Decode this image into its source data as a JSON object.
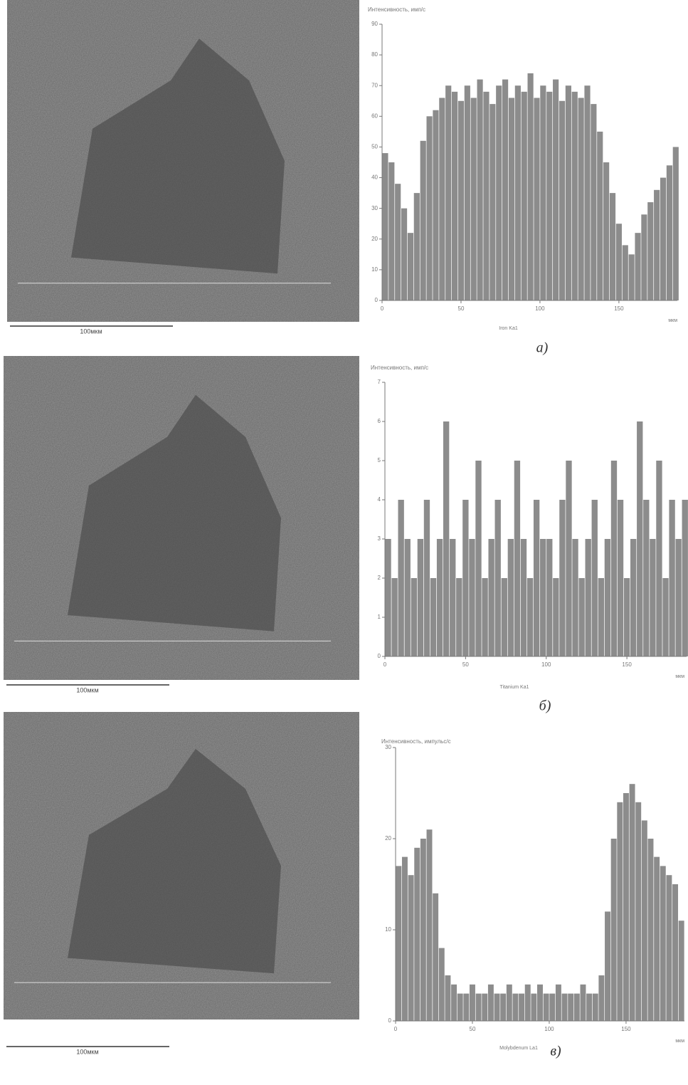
{
  "chart_data": [
    {
      "type": "bar",
      "y_label": "Интенсивность, имп/с",
      "x_label": "Iron Ka1",
      "x_unit": "мкм",
      "color": "#8c8c8c",
      "x": [
        2,
        6,
        10,
        14,
        18,
        22,
        26,
        30,
        34,
        38,
        42,
        46,
        50,
        54,
        58,
        62,
        66,
        70,
        74,
        78,
        82,
        86,
        90,
        94,
        98,
        102,
        106,
        110,
        114,
        118,
        122,
        126,
        130,
        134,
        138,
        142,
        146,
        150,
        154,
        158,
        162,
        166,
        170,
        174,
        178,
        182,
        186
      ],
      "values": [
        48,
        45,
        38,
        30,
        22,
        35,
        52,
        60,
        62,
        66,
        70,
        68,
        65,
        70,
        66,
        72,
        68,
        64,
        70,
        72,
        66,
        70,
        68,
        74,
        66,
        70,
        68,
        72,
        65,
        70,
        68,
        66,
        70,
        64,
        55,
        45,
        35,
        25,
        18,
        15,
        22,
        28,
        32,
        36,
        40,
        44,
        50
      ],
      "xlim": [
        0,
        187
      ],
      "ylim": [
        0,
        90
      ],
      "xticks": [
        0,
        50,
        100,
        150
      ],
      "yticks": [
        0,
        10,
        20,
        30,
        40,
        50,
        60,
        70,
        80,
        90
      ]
    },
    {
      "type": "bar",
      "y_label": "Интенсивность, имп/с",
      "x_label": "Titanium Ka1",
      "x_unit": "мкм",
      "color": "#8c8c8c",
      "x": [
        2,
        6,
        10,
        14,
        18,
        22,
        26,
        30,
        34,
        38,
        42,
        46,
        50,
        54,
        58,
        62,
        66,
        70,
        74,
        78,
        82,
        86,
        90,
        94,
        98,
        102,
        106,
        110,
        114,
        118,
        122,
        126,
        130,
        134,
        138,
        142,
        146,
        150,
        154,
        158,
        162,
        166,
        170,
        174,
        178,
        182,
        186
      ],
      "values": [
        3,
        2,
        4,
        3,
        2,
        3,
        4,
        2,
        3,
        6,
        3,
        2,
        4,
        3,
        5,
        2,
        3,
        4,
        2,
        3,
        5,
        3,
        2,
        4,
        3,
        3,
        2,
        4,
        5,
        3,
        2,
        3,
        4,
        2,
        3,
        5,
        4,
        2,
        3,
        6,
        4,
        3,
        5,
        2,
        4,
        3,
        4
      ],
      "xlim": [
        0,
        187
      ],
      "ylim": [
        0,
        7
      ],
      "xticks": [
        0,
        50,
        100,
        150
      ],
      "yticks": [
        0,
        1,
        2,
        3,
        4,
        5,
        6,
        7
      ]
    },
    {
      "type": "bar",
      "y_label": "Интенсивность, импульс/с",
      "x_label": "Molybdenum La1",
      "x_unit": "мкм",
      "color": "#8c8c8c",
      "x": [
        2,
        6,
        10,
        14,
        18,
        22,
        26,
        30,
        34,
        38,
        42,
        46,
        50,
        54,
        58,
        62,
        66,
        70,
        74,
        78,
        82,
        86,
        90,
        94,
        98,
        102,
        106,
        110,
        114,
        118,
        122,
        126,
        130,
        134,
        138,
        142,
        146,
        150,
        154,
        158,
        162,
        166,
        170,
        174,
        178,
        182,
        186
      ],
      "values": [
        17,
        18,
        16,
        19,
        20,
        21,
        14,
        8,
        5,
        4,
        3,
        3,
        4,
        3,
        3,
        4,
        3,
        3,
        4,
        3,
        3,
        4,
        3,
        4,
        3,
        3,
        4,
        3,
        3,
        3,
        4,
        3,
        3,
        5,
        12,
        20,
        24,
        25,
        26,
        24,
        22,
        20,
        18,
        17,
        16,
        15,
        11
      ],
      "xlim": [
        0,
        188
      ],
      "ylim": [
        0,
        30
      ],
      "xticks": [
        0,
        50,
        100,
        150
      ],
      "yticks": [
        0,
        10,
        20,
        30
      ]
    }
  ],
  "panels": [
    {
      "scale_bar": "100мкм",
      "caption": "а)"
    },
    {
      "scale_bar": "100мкм",
      "caption": "б)"
    },
    {
      "scale_bar": "100мкм",
      "caption": "в)"
    }
  ]
}
